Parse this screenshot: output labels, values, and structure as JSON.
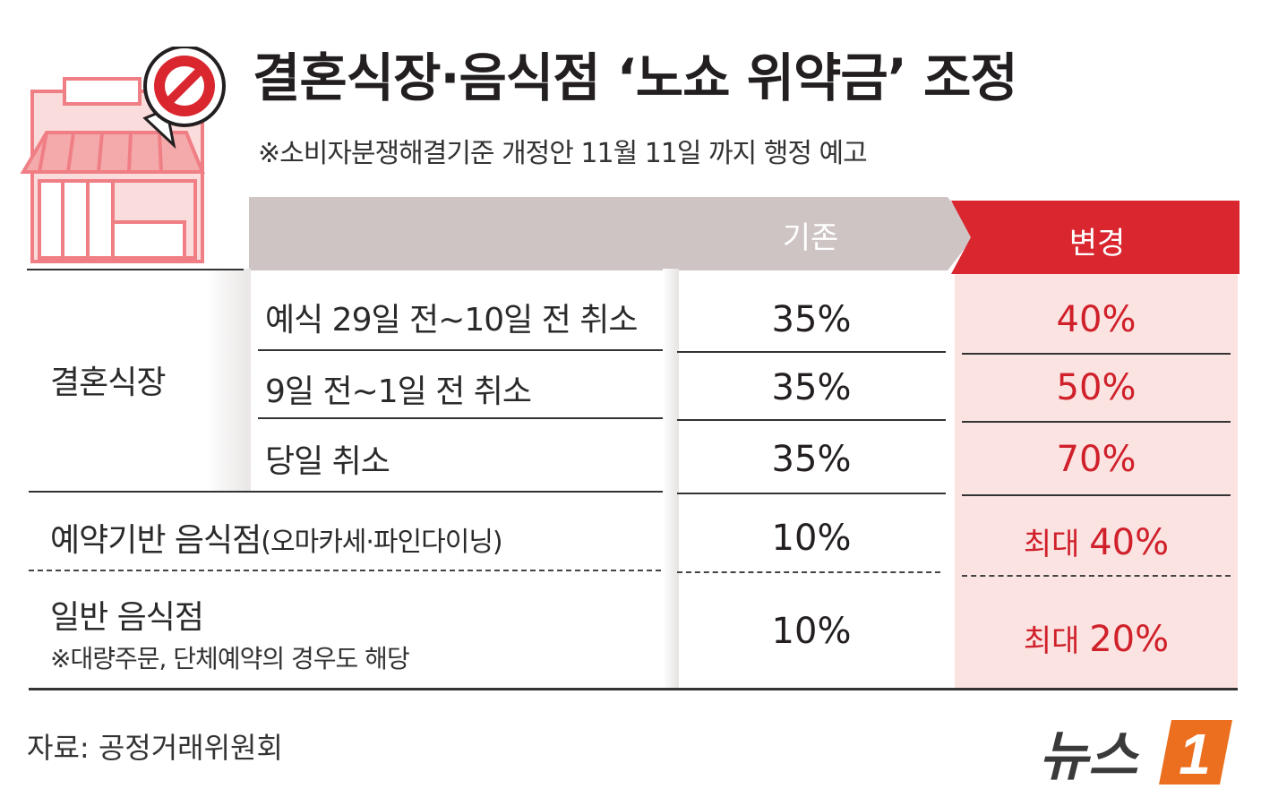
{
  "header": {
    "title": "결혼식장·음식점 ‘노쇼 위약금’ 조정",
    "subtitle": "※소비자분쟁해결기준 개정안 11월 11일 까지 행정 예고"
  },
  "table": {
    "col_base": "기존",
    "col_change": "변경",
    "wedding_category": "결혼식장",
    "rows": [
      {
        "label": "예식 29일 전~10일 전 취소",
        "base": "35%",
        "change": "40%"
      },
      {
        "label": "9일 전~1일 전 취소",
        "base": "35%",
        "change": "50%"
      },
      {
        "label": "당일 취소",
        "base": "35%",
        "change": "70%"
      }
    ],
    "reservation": {
      "label_main": "예약기반 음식점",
      "label_paren": "(오마카세·파인다이닝)",
      "base": "10%",
      "change_prefix": "최대 ",
      "change_value": "40%"
    },
    "general": {
      "label": "일반 음식점",
      "note": "※대량주문, 단체예약의 경우도 해당",
      "base": "10%",
      "change_prefix": "최대 ",
      "change_value": "20%"
    }
  },
  "footer": {
    "source": "자료: 공정거래위원회",
    "logo_text": "뉴스",
    "logo_mark": "1"
  },
  "icons": [
    "store-icon",
    "no-entry-sign-icon",
    "news1-logo-icon"
  ],
  "colors": {
    "accent_red": "#d9262f",
    "header_gray": "#cdc4c3",
    "pink_bg": "#fbe3e2",
    "store_pink": "#f08a8e"
  }
}
